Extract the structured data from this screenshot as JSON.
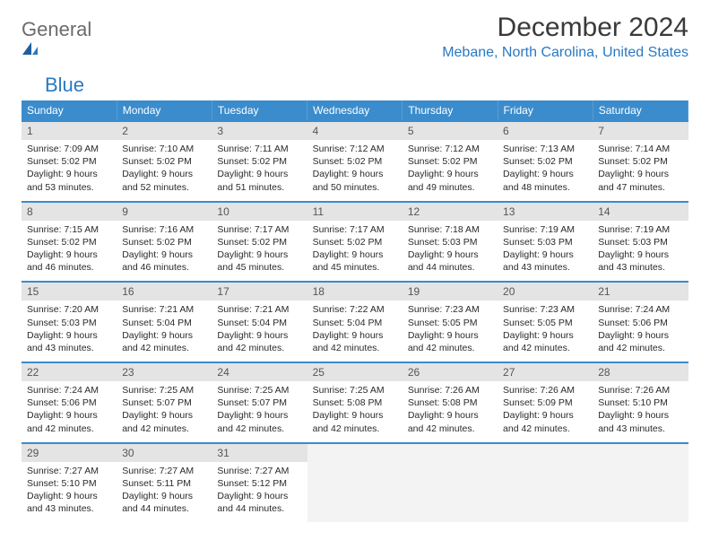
{
  "colors": {
    "header_bg": "#3b8ccc",
    "header_fg": "#ffffff",
    "row_divider": "#3b8ccc",
    "daynum_bg": "#e4e4e4",
    "trailing_bg": "#f3f3f3",
    "logo_grey": "#6b6b6b",
    "logo_blue": "#2a79c2",
    "location_color": "#2a79c2"
  },
  "logo": {
    "part1": "General",
    "part2": "Blue"
  },
  "title": "December 2024",
  "location": "Mebane, North Carolina, United States",
  "weekdays": [
    "Sunday",
    "Monday",
    "Tuesday",
    "Wednesday",
    "Thursday",
    "Friday",
    "Saturday"
  ],
  "weeks": [
    [
      {
        "n": "1",
        "sr": "7:09 AM",
        "ss": "5:02 PM",
        "dl": "9 hours and 53 minutes."
      },
      {
        "n": "2",
        "sr": "7:10 AM",
        "ss": "5:02 PM",
        "dl": "9 hours and 52 minutes."
      },
      {
        "n": "3",
        "sr": "7:11 AM",
        "ss": "5:02 PM",
        "dl": "9 hours and 51 minutes."
      },
      {
        "n": "4",
        "sr": "7:12 AM",
        "ss": "5:02 PM",
        "dl": "9 hours and 50 minutes."
      },
      {
        "n": "5",
        "sr": "7:12 AM",
        "ss": "5:02 PM",
        "dl": "9 hours and 49 minutes."
      },
      {
        "n": "6",
        "sr": "7:13 AM",
        "ss": "5:02 PM",
        "dl": "9 hours and 48 minutes."
      },
      {
        "n": "7",
        "sr": "7:14 AM",
        "ss": "5:02 PM",
        "dl": "9 hours and 47 minutes."
      }
    ],
    [
      {
        "n": "8",
        "sr": "7:15 AM",
        "ss": "5:02 PM",
        "dl": "9 hours and 46 minutes."
      },
      {
        "n": "9",
        "sr": "7:16 AM",
        "ss": "5:02 PM",
        "dl": "9 hours and 46 minutes."
      },
      {
        "n": "10",
        "sr": "7:17 AM",
        "ss": "5:02 PM",
        "dl": "9 hours and 45 minutes."
      },
      {
        "n": "11",
        "sr": "7:17 AM",
        "ss": "5:02 PM",
        "dl": "9 hours and 45 minutes."
      },
      {
        "n": "12",
        "sr": "7:18 AM",
        "ss": "5:03 PM",
        "dl": "9 hours and 44 minutes."
      },
      {
        "n": "13",
        "sr": "7:19 AM",
        "ss": "5:03 PM",
        "dl": "9 hours and 43 minutes."
      },
      {
        "n": "14",
        "sr": "7:19 AM",
        "ss": "5:03 PM",
        "dl": "9 hours and 43 minutes."
      }
    ],
    [
      {
        "n": "15",
        "sr": "7:20 AM",
        "ss": "5:03 PM",
        "dl": "9 hours and 43 minutes."
      },
      {
        "n": "16",
        "sr": "7:21 AM",
        "ss": "5:04 PM",
        "dl": "9 hours and 42 minutes."
      },
      {
        "n": "17",
        "sr": "7:21 AM",
        "ss": "5:04 PM",
        "dl": "9 hours and 42 minutes."
      },
      {
        "n": "18",
        "sr": "7:22 AM",
        "ss": "5:04 PM",
        "dl": "9 hours and 42 minutes."
      },
      {
        "n": "19",
        "sr": "7:23 AM",
        "ss": "5:05 PM",
        "dl": "9 hours and 42 minutes."
      },
      {
        "n": "20",
        "sr": "7:23 AM",
        "ss": "5:05 PM",
        "dl": "9 hours and 42 minutes."
      },
      {
        "n": "21",
        "sr": "7:24 AM",
        "ss": "5:06 PM",
        "dl": "9 hours and 42 minutes."
      }
    ],
    [
      {
        "n": "22",
        "sr": "7:24 AM",
        "ss": "5:06 PM",
        "dl": "9 hours and 42 minutes."
      },
      {
        "n": "23",
        "sr": "7:25 AM",
        "ss": "5:07 PM",
        "dl": "9 hours and 42 minutes."
      },
      {
        "n": "24",
        "sr": "7:25 AM",
        "ss": "5:07 PM",
        "dl": "9 hours and 42 minutes."
      },
      {
        "n": "25",
        "sr": "7:25 AM",
        "ss": "5:08 PM",
        "dl": "9 hours and 42 minutes."
      },
      {
        "n": "26",
        "sr": "7:26 AM",
        "ss": "5:08 PM",
        "dl": "9 hours and 42 minutes."
      },
      {
        "n": "27",
        "sr": "7:26 AM",
        "ss": "5:09 PM",
        "dl": "9 hours and 42 minutes."
      },
      {
        "n": "28",
        "sr": "7:26 AM",
        "ss": "5:10 PM",
        "dl": "9 hours and 43 minutes."
      }
    ],
    [
      {
        "n": "29",
        "sr": "7:27 AM",
        "ss": "5:10 PM",
        "dl": "9 hours and 43 minutes."
      },
      {
        "n": "30",
        "sr": "7:27 AM",
        "ss": "5:11 PM",
        "dl": "9 hours and 44 minutes."
      },
      {
        "n": "31",
        "sr": "7:27 AM",
        "ss": "5:12 PM",
        "dl": "9 hours and 44 minutes."
      },
      null,
      null,
      null,
      null
    ]
  ],
  "labels": {
    "sunrise": "Sunrise: ",
    "sunset": "Sunset: ",
    "daylight": "Daylight: "
  }
}
